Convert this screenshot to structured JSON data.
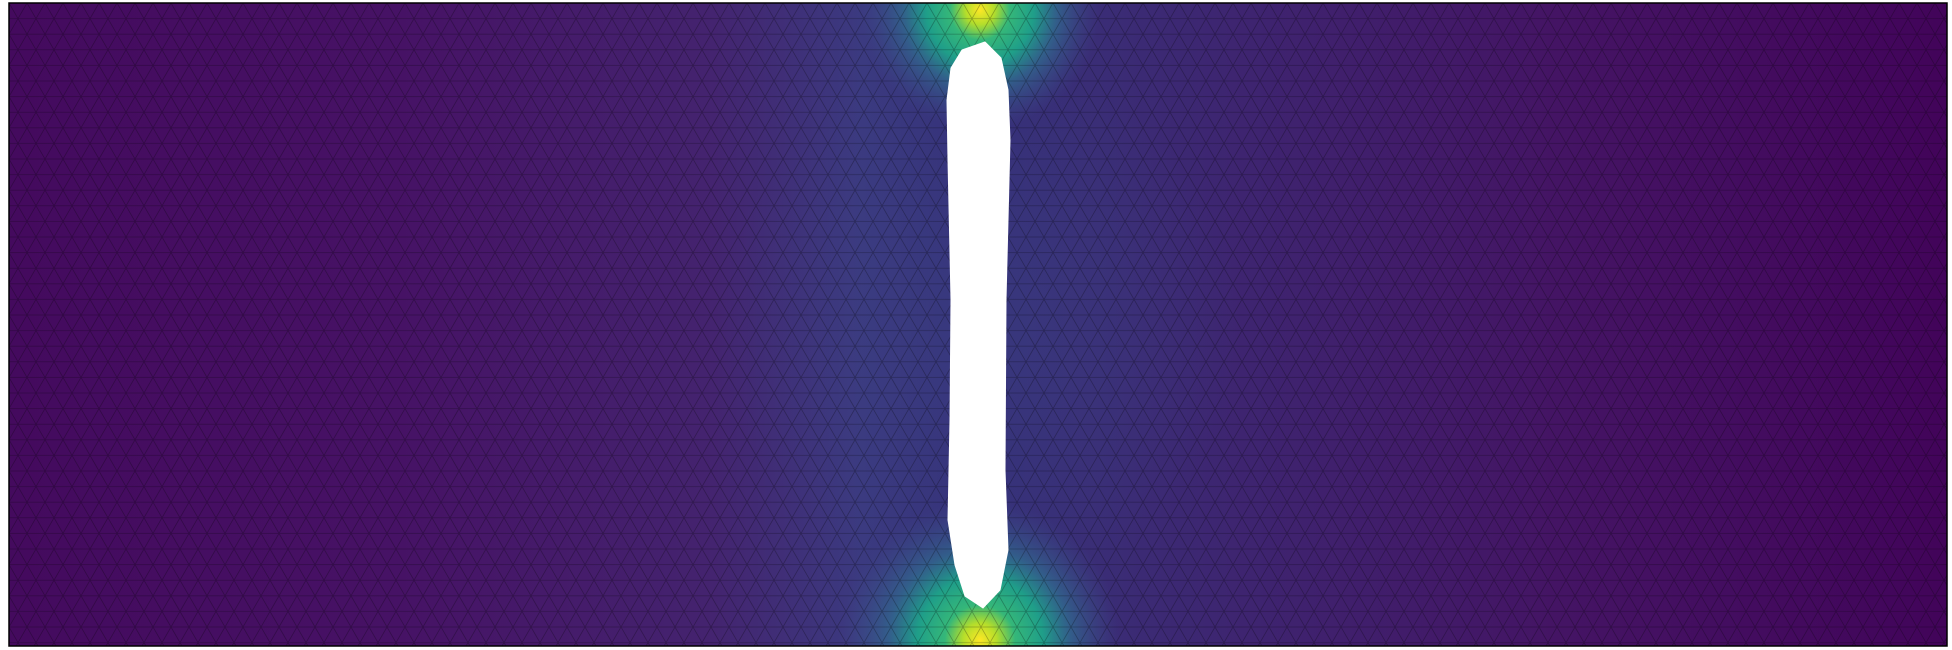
{
  "view": {
    "background_color": "#ffffff",
    "field_colormap": "viridis",
    "mesh_type": "triangular",
    "mesh_line_color": "#000000",
    "hole_color": "#ffffff",
    "colormap_stops": [
      "#440154",
      "#482878",
      "#3e4989",
      "#31688e",
      "#26828e",
      "#1f9e89",
      "#35b779",
      "#6ece58",
      "#b5de2b",
      "#fde725"
    ]
  }
}
